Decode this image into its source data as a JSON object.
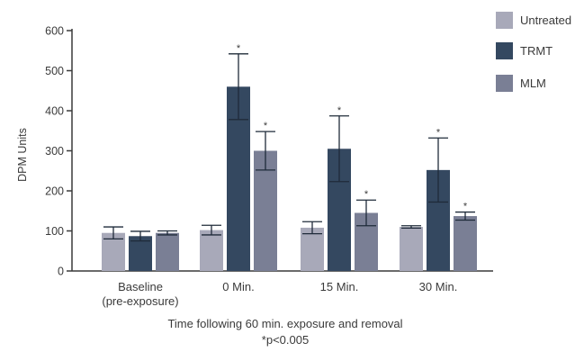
{
  "chart_data": {
    "type": "bar",
    "ylabel": "DPM Units",
    "xlabel": "Time following 60 min. exposure and removal",
    "footnote": "*p<0.005",
    "ylim": [
      0,
      600
    ],
    "yticks": [
      "0",
      "100",
      "200",
      "300",
      "400",
      "500",
      "600"
    ],
    "categories": [
      {
        "line1": "Baseline",
        "line2": "(pre-exposure)"
      },
      {
        "line1": "0 Min.",
        "line2": ""
      },
      {
        "line1": "15 Min.",
        "line2": ""
      },
      {
        "line1": "30 Min.",
        "line2": ""
      }
    ],
    "series": [
      {
        "name": "Untreated",
        "color": "#a8a9b9",
        "values": [
          95,
          102,
          108,
          110
        ],
        "errors": [
          15,
          12,
          15,
          3
        ],
        "sig": [
          false,
          false,
          false,
          false
        ]
      },
      {
        "name": "TRMT",
        "color": "#344860",
        "values": [
          87,
          460,
          305,
          252
        ],
        "errors": [
          12,
          82,
          82,
          80
        ],
        "sig": [
          false,
          true,
          true,
          true
        ]
      },
      {
        "name": "MLM",
        "color": "#7a7f95",
        "values": [
          95,
          300,
          145,
          137
        ],
        "errors": [
          5,
          48,
          32,
          10
        ],
        "sig": [
          false,
          true,
          true,
          true
        ]
      }
    ],
    "sig_marker": "*",
    "legend_position": "top-right",
    "grid": false
  }
}
